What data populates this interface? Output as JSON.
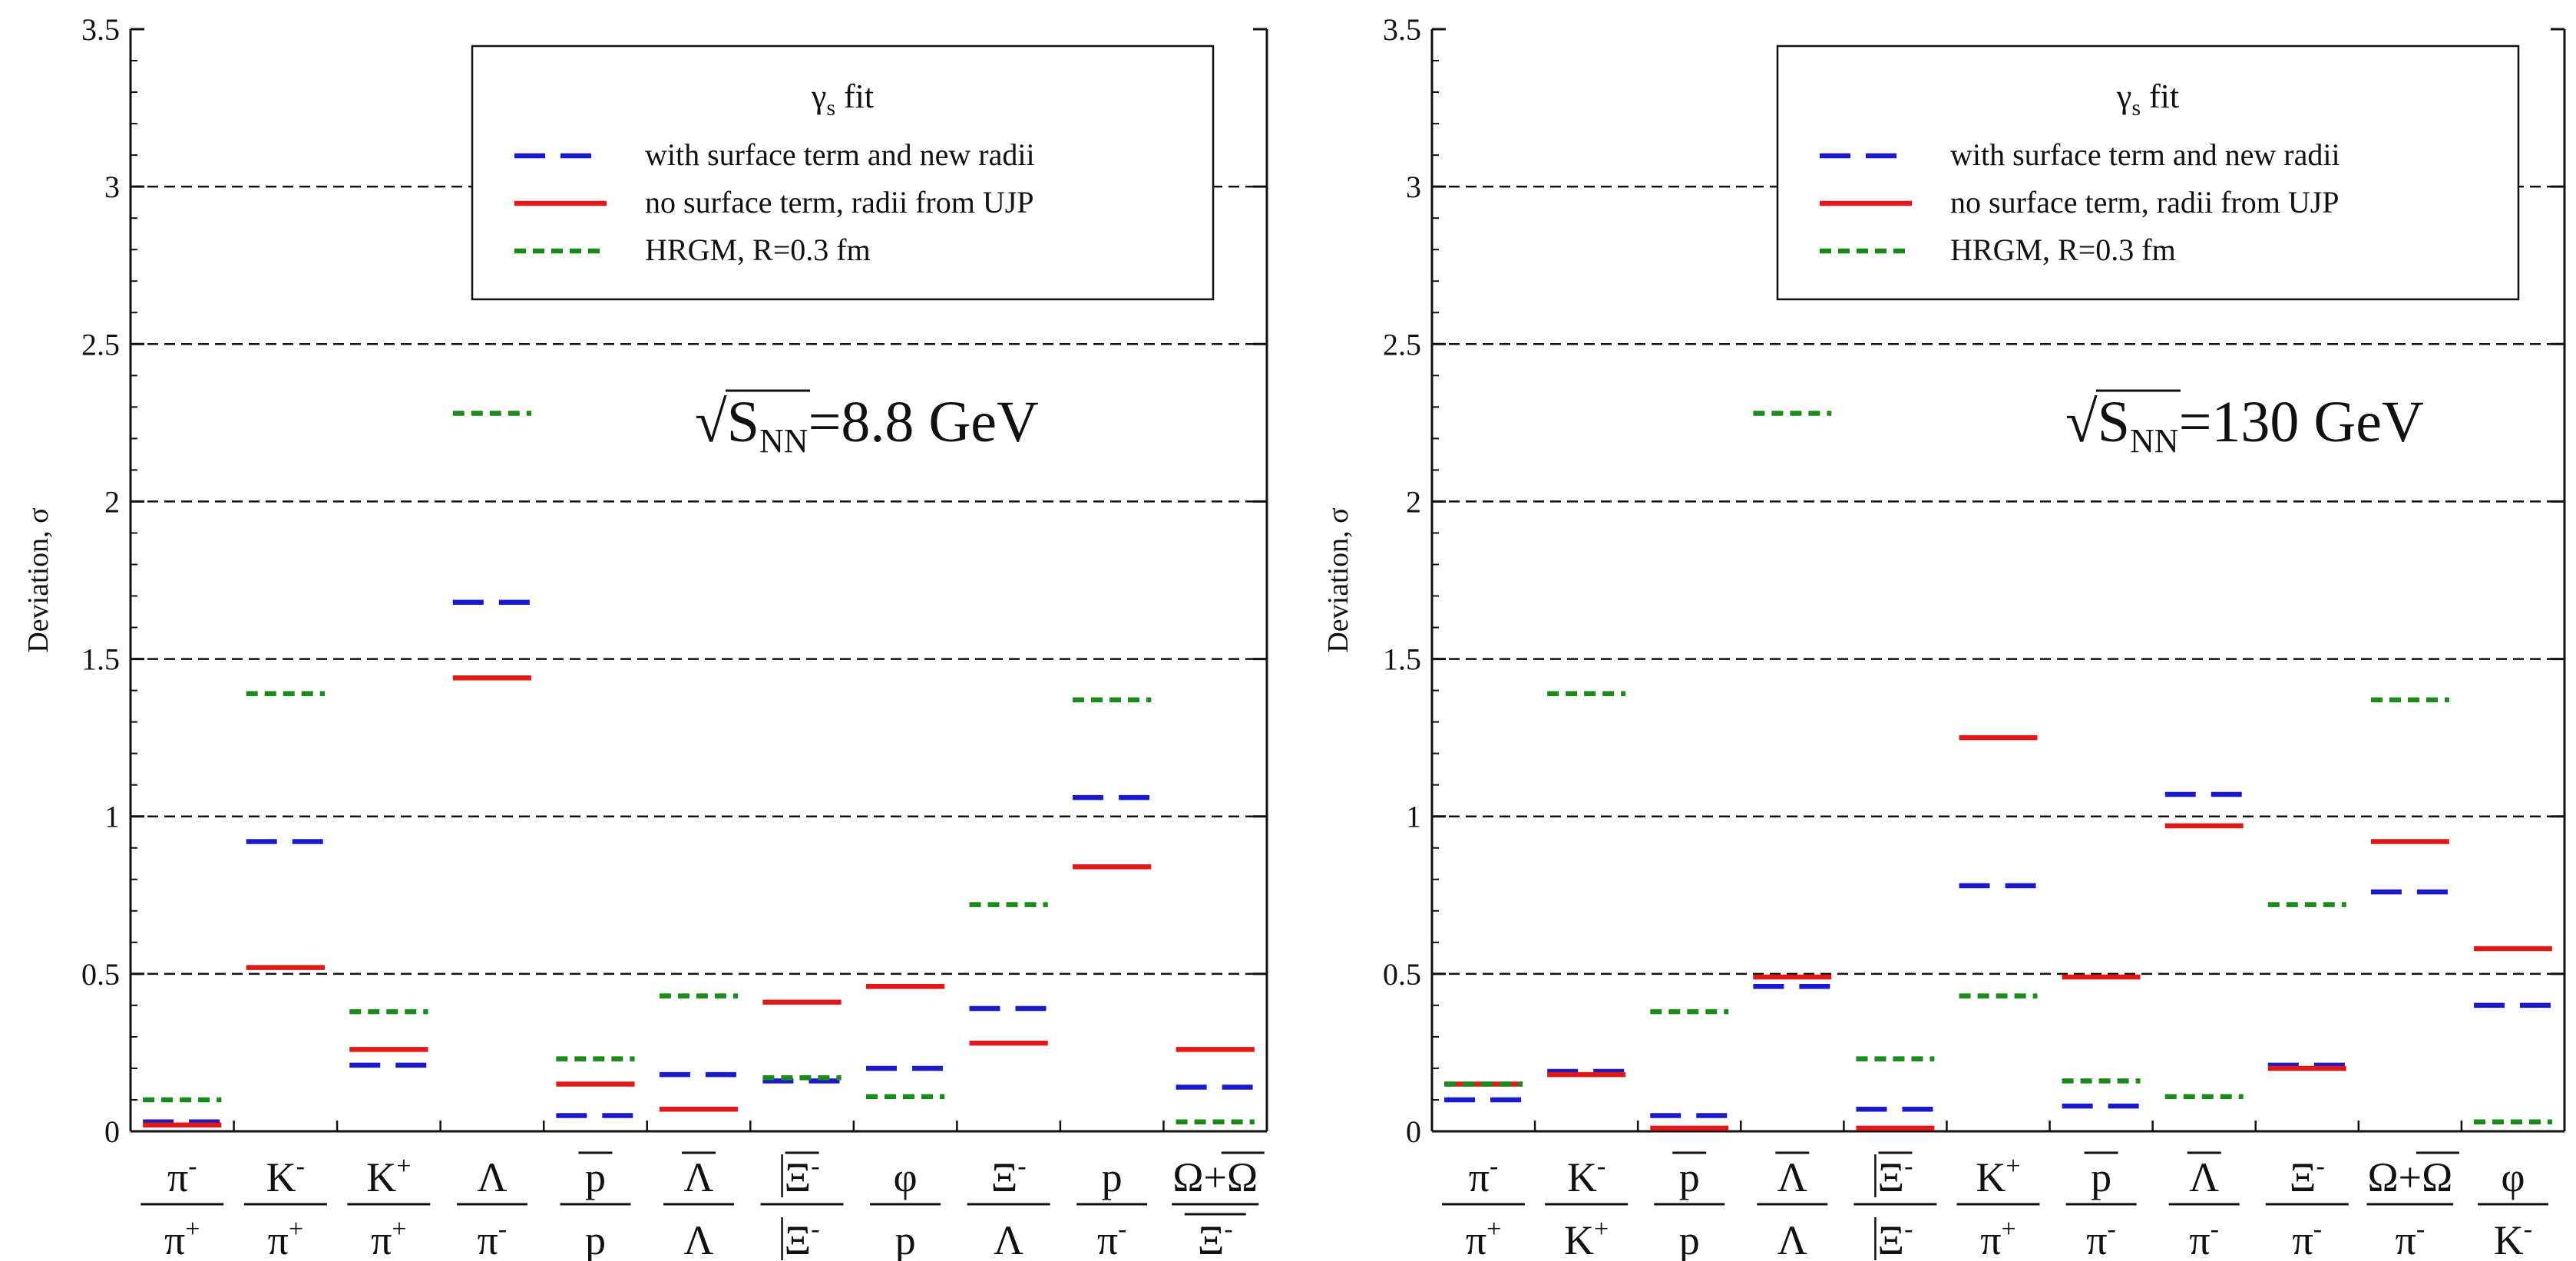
{
  "colors": {
    "surface": "#1a1acc",
    "nosurface": "#e01818",
    "hrgm": "#1a8a1a",
    "grid": "#111111",
    "axis": "#111111"
  },
  "chart_data": [
    {
      "type": "step",
      "ylabel": "Deviation, σ",
      "ylim": [
        0,
        3.5
      ],
      "yticks": [
        "0",
        "0.5",
        "1",
        "1.5",
        "2",
        "2.5",
        "3",
        "3.5"
      ],
      "legend": {
        "title_main": "γ",
        "title_sub": "s",
        "title_rest": " fit",
        "entries": [
          "with surface term and new radii",
          "no surface term, radii from UJP",
          "HRGM, R=0.3 fm"
        ]
      },
      "annotation": {
        "root": "√",
        "s": "S",
        "sub": "NN",
        "value": "=8.8 GeV"
      },
      "categories": [
        {
          "num": "π",
          "numSup": "-",
          "den": "π",
          "denSup": "+"
        },
        {
          "num": "K",
          "numSup": "-",
          "den": "π",
          "denSup": "+"
        },
        {
          "num": "K",
          "numSup": "+",
          "den": "π",
          "denSup": "+"
        },
        {
          "num": "Λ",
          "numSup": "",
          "den": "π",
          "denSup": "-"
        },
        {
          "num": "p",
          "numSup": "",
          "numBar": true,
          "den": "p",
          "denSup": ""
        },
        {
          "num": "Λ",
          "numSup": "",
          "numBar": true,
          "den": "Λ",
          "denSup": ""
        },
        {
          "num": "Ξ",
          "numSup": "-",
          "numBar": true,
          "numBox": true,
          "den": "Ξ",
          "denSup": "-",
          "denBox": true
        },
        {
          "num": "φ",
          "numSup": "",
          "den": "p",
          "denSup": ""
        },
        {
          "num": "Ξ",
          "numSup": "-",
          "den": "Λ",
          "denSup": ""
        },
        {
          "num": "p",
          "numSup": "",
          "den": "π",
          "denSup": "-"
        },
        {
          "num": "Ω+Ω",
          "numSup": "",
          "numBarLast": true,
          "den": "Ξ",
          "denSup": "-",
          "denBar": true
        }
      ],
      "series": [
        {
          "name": "with surface term and new radii",
          "values": [
            0.03,
            0.92,
            0.21,
            1.68,
            0.05,
            0.18,
            0.16,
            0.2,
            0.39,
            1.06,
            0.14
          ]
        },
        {
          "name": "no surface term, radii from UJP",
          "values": [
            0.02,
            0.52,
            0.26,
            1.44,
            0.15,
            0.07,
            0.41,
            0.46,
            0.28,
            0.84,
            0.26
          ]
        },
        {
          "name": "HRGM, R=0.3 fm",
          "values": [
            0.1,
            1.39,
            0.38,
            2.28,
            0.23,
            0.43,
            0.17,
            0.11,
            0.72,
            1.37,
            0.03
          ]
        }
      ]
    },
    {
      "type": "step",
      "ylabel": "Deviation, σ",
      "ylim": [
        0,
        3.5
      ],
      "yticks": [
        "0",
        "0.5",
        "1",
        "1.5",
        "2",
        "2.5",
        "3",
        "3.5"
      ],
      "legend": {
        "title_main": "γ",
        "title_sub": "s",
        "title_rest": " fit",
        "entries": [
          "with surface term and new radii",
          "no surface term, radii from UJP",
          "HRGM, R=0.3 fm"
        ]
      },
      "annotation": {
        "root": "√",
        "s": "S",
        "sub": "NN",
        "value": "=130 GeV"
      },
      "categories": [
        {
          "num": "π",
          "numSup": "-",
          "den": "π",
          "denSup": "+"
        },
        {
          "num": "K",
          "numSup": "-",
          "den": "K",
          "denSup": "+"
        },
        {
          "num": "p",
          "numSup": "",
          "numBar": true,
          "den": "p",
          "denSup": ""
        },
        {
          "num": "Λ",
          "numSup": "",
          "numBar": true,
          "den": "Λ",
          "denSup": ""
        },
        {
          "num": "Ξ",
          "numSup": "-",
          "numBar": true,
          "numBox": true,
          "den": "Ξ",
          "denSup": "-",
          "denBox": true
        },
        {
          "num": "K",
          "numSup": "+",
          "den": "π",
          "denSup": "+"
        },
        {
          "num": "p",
          "numSup": "",
          "numBar": true,
          "den": "π",
          "denSup": "-"
        },
        {
          "num": "Λ",
          "numSup": "",
          "numBar": true,
          "den": "π",
          "denSup": "-"
        },
        {
          "num": "Ξ",
          "numSup": "-",
          "den": "π",
          "denSup": "-"
        },
        {
          "num": "Ω+Ω",
          "numSup": "",
          "numBarLast": true,
          "den": "π",
          "denSup": "-"
        },
        {
          "num": "φ",
          "numSup": "",
          "den": "K",
          "denSup": "-"
        }
      ],
      "series": [
        {
          "name": "with surface term and new radii",
          "values": [
            0.1,
            0.19,
            0.05,
            0.46,
            0.07,
            0.78,
            0.08,
            1.07,
            0.21,
            0.76,
            0.4
          ]
        },
        {
          "name": "no surface term, radii from UJP",
          "values": [
            0.15,
            0.18,
            0.01,
            0.49,
            0.01,
            1.25,
            0.49,
            0.97,
            0.2,
            0.92,
            0.58
          ]
        },
        {
          "name": "HRGM, R=0.3 fm",
          "values": [
            0.15,
            1.39,
            0.38,
            2.28,
            0.23,
            0.43,
            0.16,
            0.11,
            0.72,
            1.37,
            0.03
          ]
        }
      ]
    }
  ]
}
